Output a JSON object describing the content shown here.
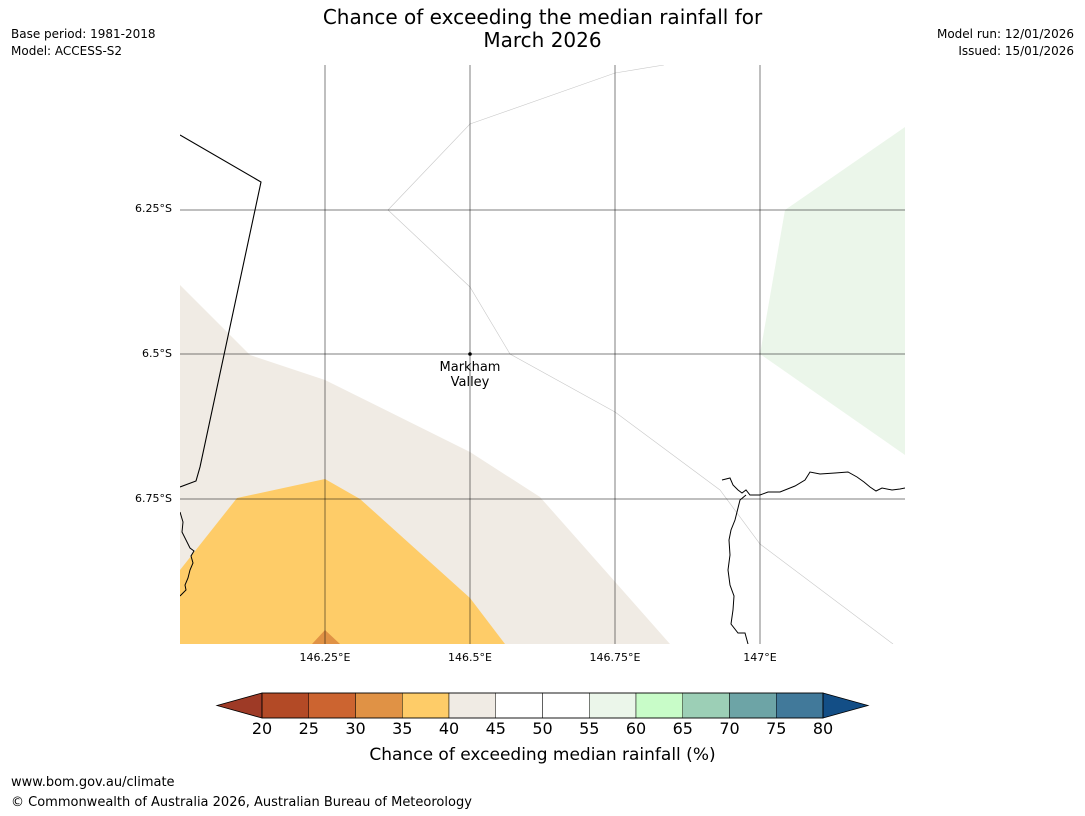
{
  "header": {
    "base_period": "Base period: 1981-2018",
    "model": "Model: ACCESS-S2",
    "title_line1": "Chance of exceeding the median rainfall for",
    "title_line2": "March 2026",
    "model_run": "Model run: 12/01/2026",
    "issued": "Issued: 15/01/2026"
  },
  "map": {
    "latitude_labels": [
      "6.25°S",
      "6.5°S",
      "6.75°S"
    ],
    "longitude_labels": [
      "146.25°E",
      "146.5°E",
      "146.75°E",
      "147°E"
    ],
    "place_name_line1": "Markham",
    "place_name_line2": "Valley"
  },
  "colorbar": {
    "ticks": [
      "20",
      "25",
      "30",
      "35",
      "40",
      "45",
      "50",
      "55",
      "60",
      "65",
      "70",
      "75",
      "80"
    ],
    "colors": {
      "under": "#9e3a26",
      "c20_25": "#b34a26",
      "c25_30": "#cc6430",
      "c30_35": "#e09245",
      "c35_40": "#fecc68",
      "c40_45": "#f0ebe4",
      "c45_50": "#ffffff",
      "c50_55": "#ffffff",
      "c55_60": "#ebf6ea",
      "c60_65": "#c8fcc8",
      "c65_70": "#9ccfb6",
      "c70_75": "#6da4a6",
      "c75_80": "#41799a",
      "over": "#134e86"
    },
    "label": "Chance of exceeding median rainfall (%)"
  },
  "footer": {
    "url": "www.bom.gov.au/climate",
    "copyright": "© Commonwealth of Australia 2026, Australian Bureau of Meteorology"
  }
}
